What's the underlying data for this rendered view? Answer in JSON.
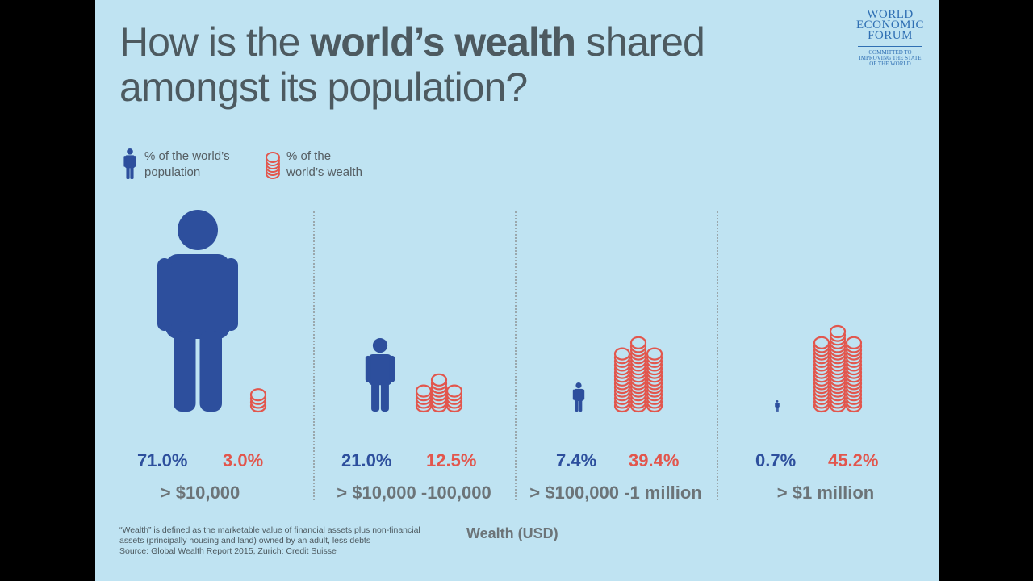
{
  "title": {
    "part1": "How is the ",
    "bold": "world’s wealth",
    "part2": " shared",
    "line2": "amongst its population?"
  },
  "logo": {
    "lines": [
      "WORLD",
      "ECONOMIC",
      "FORUM"
    ],
    "tagline": [
      "COMMITTED TO",
      "IMPROVING THE STATE",
      "OF THE WORLD"
    ]
  },
  "legend": {
    "population": "% of the world’s\npopulation",
    "wealth": "% of the\nworld’s wealth"
  },
  "colors": {
    "background": "#bfe3f2",
    "population": "#2d4f9d",
    "wealth": "#e2564d",
    "text": "#4d5a60",
    "range": "#6c7478"
  },
  "icons": {
    "population": "person-icon",
    "wealth": "coin-stack-icon"
  },
  "chart_data": {
    "type": "pictograph",
    "title": "How is the world’s wealth shared amongst its population?",
    "xlabel": "Wealth (USD)",
    "categories": [
      "> $10,000",
      "> $10,000 -100,000",
      "> $100,000 -1 million",
      "> $1 million"
    ],
    "series": [
      {
        "name": "% of the world’s population",
        "values": [
          71.0,
          21.0,
          7.4,
          0.7
        ],
        "labels": [
          "71.0%",
          "21.0%",
          "7.4%",
          "0.7%"
        ]
      },
      {
        "name": "% of the world’s wealth",
        "values": [
          3.0,
          12.5,
          39.4,
          45.2
        ],
        "labels": [
          "3.0%",
          "12.5%",
          "39.4%",
          "45.2%"
        ]
      }
    ],
    "legend": "top-left"
  },
  "footnote": {
    "line1": "“Wealth” is defined as the marketable value of financial assets plus non-financial",
    "line2": "assets (principally housing and land) owned by an adult, less debts",
    "line3": "Source: Global Wealth Report 2015, Zurich: Credit Suisse"
  }
}
